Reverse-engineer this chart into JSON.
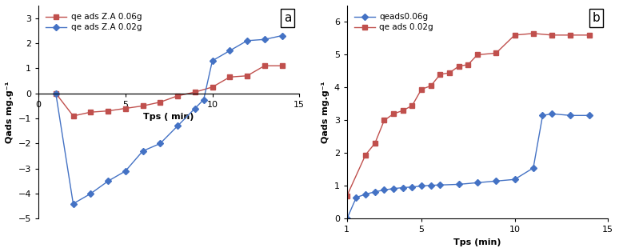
{
  "panel_a": {
    "title": "a",
    "xlabel": "Tps ( min)",
    "ylabel": "Qads mg.g⁻¹",
    "xlim": [
      0,
      15
    ],
    "ylim": [
      -5,
      3.5
    ],
    "yticks": [
      -5,
      -4,
      -3,
      -2,
      -1,
      0,
      1,
      2,
      3
    ],
    "xticks": [
      0,
      5,
      10,
      15
    ],
    "series": [
      {
        "label": "qe ads Z.A 0.06g",
        "color": "#c0504d",
        "marker": "s",
        "markersize": 4,
        "x": [
          1,
          2,
          3,
          4,
          5,
          6,
          7,
          8,
          9,
          10,
          11,
          12,
          13,
          14
        ],
        "y": [
          0.0,
          -0.9,
          -0.75,
          -0.7,
          -0.6,
          -0.5,
          -0.35,
          -0.1,
          0.05,
          0.25,
          0.65,
          0.7,
          1.1,
          1.1
        ]
      },
      {
        "label": "qe ads Z.A 0.02g",
        "color": "#4472c4",
        "marker": "D",
        "markersize": 4,
        "x": [
          1,
          2,
          3,
          4,
          5,
          6,
          7,
          8,
          9,
          9.5,
          10,
          11,
          12,
          13,
          14
        ],
        "y": [
          0.0,
          -4.4,
          -4.0,
          -3.5,
          -3.1,
          -2.3,
          -2.0,
          -1.3,
          -0.6,
          -0.25,
          1.3,
          1.7,
          2.1,
          2.15,
          2.3
        ]
      }
    ]
  },
  "panel_b": {
    "title": "b",
    "xlabel": "Tps (min)",
    "ylabel": "Qads mg.g⁻¹",
    "xlim": [
      1,
      15
    ],
    "ylim": [
      0,
      6.5
    ],
    "yticks": [
      0,
      1,
      2,
      3,
      4,
      5,
      6
    ],
    "xticks": [
      1,
      5,
      10,
      15
    ],
    "series": [
      {
        "label": "qeads0.06g",
        "color": "#4472c4",
        "marker": "D",
        "markersize": 4,
        "x": [
          1,
          1.5,
          2,
          2.5,
          3,
          3.5,
          4,
          4.5,
          5,
          5.5,
          6,
          7,
          8,
          9,
          10,
          11,
          11.5,
          12,
          13,
          14
        ],
        "y": [
          0.0,
          0.65,
          0.75,
          0.82,
          0.88,
          0.92,
          0.95,
          0.97,
          1.0,
          1.02,
          1.03,
          1.05,
          1.1,
          1.15,
          1.2,
          1.55,
          3.15,
          3.2,
          3.15,
          3.15
        ]
      },
      {
        "label": "qe ads 0.02g",
        "color": "#c0504d",
        "marker": "s",
        "markersize": 4,
        "x": [
          1,
          2,
          2.5,
          3,
          3.5,
          4,
          4.5,
          5,
          5.5,
          6,
          6.5,
          7,
          7.5,
          8,
          9,
          10,
          11,
          12,
          13,
          14
        ],
        "y": [
          0.7,
          1.95,
          2.3,
          3.0,
          3.2,
          3.3,
          3.45,
          3.95,
          4.05,
          4.4,
          4.45,
          4.65,
          4.7,
          5.0,
          5.05,
          5.6,
          5.65,
          5.6,
          5.6,
          5.6
        ]
      }
    ]
  },
  "background_color": "#ffffff",
  "panel_label_fontsize": 11,
  "axis_label_fontsize": 8,
  "tick_fontsize": 8,
  "legend_fontsize": 7.5
}
